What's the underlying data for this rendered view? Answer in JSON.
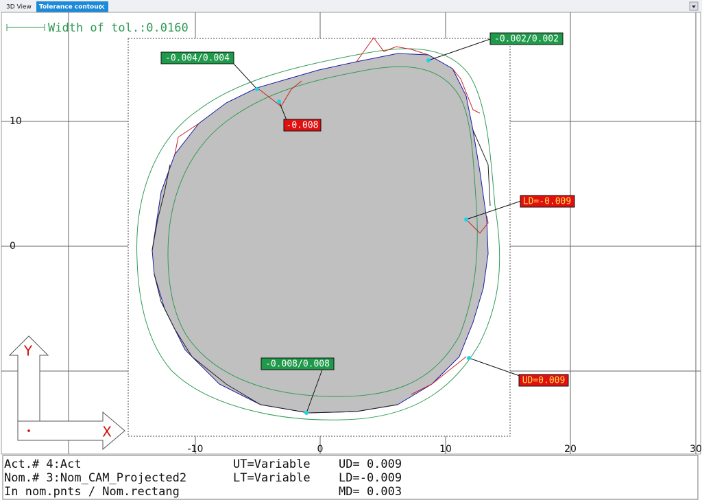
{
  "tabs": [
    "3D View",
    "Tolerance contour"
  ],
  "width_label": "Width of tol.:0.0160",
  "axes": {
    "x": [
      "-10",
      "0",
      "10",
      "20",
      "30"
    ],
    "y": [
      "10",
      "0"
    ]
  },
  "callouts": [
    "-0.002/0.002",
    "-0.004/0.004",
    "-0.008",
    "LD=-0.009",
    "UD=0.009",
    "-0.008/0.008"
  ],
  "axis_icon": [
    "Y",
    "X"
  ],
  "info": {
    "left": [
      "Act.# 4:Act",
      "Nom.# 3:Nom_CAM_Projected2",
      "In nom.pnts / Nom.rectang"
    ],
    "middle": [
      "UT=Variable",
      "LT=Variable"
    ],
    "right": [
      "UD= 0.009",
      "LD=-0.009",
      "MD= 0.003"
    ]
  }
}
